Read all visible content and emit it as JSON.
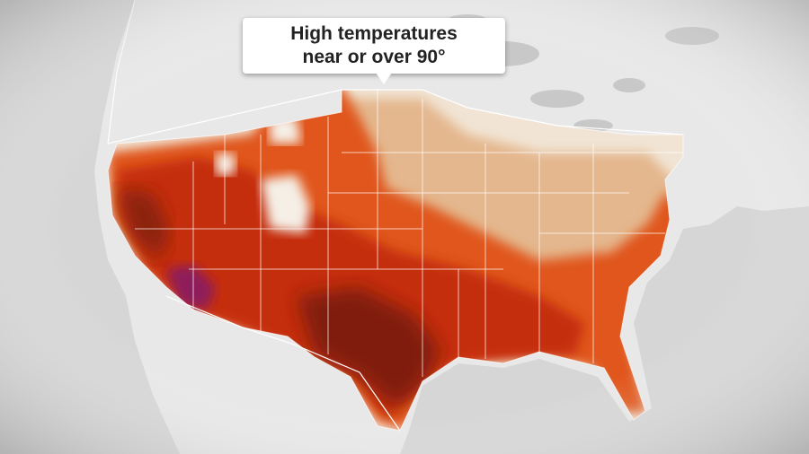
{
  "callout": {
    "line1": "High temperatures",
    "line2": "near or over 90°"
  },
  "colors": {
    "land": "#e6e6e6",
    "water": "#d2d2d2",
    "heat_light": "#f0dcc4",
    "heat_tan": "#e2b389",
    "heat_orange": "#e2571f",
    "heat_red": "#c22f12",
    "heat_dark": "#7c1a0a",
    "heat_magenta": "#8c1a5a",
    "borders": "#ffffff"
  }
}
